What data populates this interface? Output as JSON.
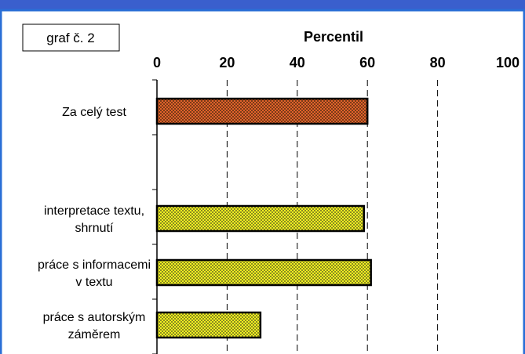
{
  "chart_data": {
    "type": "bar",
    "orientation": "horizontal",
    "graph_label": "graf č. 2",
    "axis_title": "Percentil",
    "xlim": [
      0,
      100
    ],
    "ticks": [
      0,
      20,
      40,
      60,
      80,
      100
    ],
    "gridlines": "dashed vertical",
    "categories": [
      {
        "label": [
          "Za celý test"
        ],
        "value": 60,
        "fill": "#e0622a"
      },
      {
        "label": [],
        "value": null,
        "fill": null
      },
      {
        "label": [
          "interpretace textu,",
          "shrnutí"
        ],
        "value": 59,
        "fill": "#f0f020"
      },
      {
        "label": [
          "práce s informacemi",
          "v textu"
        ],
        "value": 61,
        "fill": "#f0f020"
      },
      {
        "label": [
          "práce s autorským",
          "záměrem"
        ],
        "value": 29.5,
        "fill": "#f0f020"
      }
    ]
  },
  "colors": {
    "frame_blue": "#2a6fd6",
    "top_strip": "#3a5fcd",
    "bar_checker_dark": "#5a3a20"
  }
}
